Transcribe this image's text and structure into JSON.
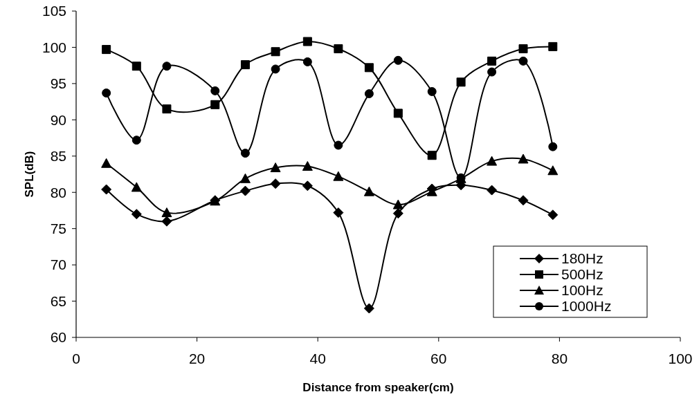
{
  "chart_data": {
    "type": "line",
    "xlabel": "Distance from speaker(cm)",
    "ylabel": "SPL(dB)",
    "x": [
      5,
      10,
      15,
      23,
      28,
      33,
      38.3,
      43.4,
      48.5,
      53.3,
      58.9,
      63.7,
      68.8,
      74,
      78.9
    ],
    "xlim": [
      0,
      100
    ],
    "xticks": [
      0,
      20,
      40,
      60,
      80,
      100
    ],
    "ylim": [
      60,
      105
    ],
    "yticks": [
      60,
      65,
      70,
      75,
      80,
      85,
      90,
      95,
      100,
      105
    ],
    "grid": false,
    "legend": "bottom right",
    "line_style": "solid",
    "series": [
      {
        "name": "180Hz",
        "color": "#000000",
        "marker": "diamond",
        "values": [
          80.4,
          77,
          76,
          78.9,
          80.2,
          81.2,
          80.9,
          77.2,
          64,
          77.1,
          80.5,
          81,
          80.3,
          78.9,
          76.9
        ]
      },
      {
        "name": "500Hz",
        "color": "#000000",
        "marker": "square",
        "values": [
          99.7,
          97.4,
          91.5,
          92.1,
          97.6,
          99.4,
          100.8,
          99.8,
          97.2,
          90.9,
          85.1,
          95.2,
          98.1,
          99.8,
          100.1
        ]
      },
      {
        "name": "100Hz",
        "color": "#000000",
        "marker": "triangle",
        "values": [
          84,
          80.7,
          77.2,
          78.8,
          81.9,
          83.4,
          83.6,
          82.2,
          80.1,
          78.3,
          80.1,
          81.9,
          84.3,
          84.6,
          83
        ]
      },
      {
        "name": "1000Hz",
        "color": "#000000",
        "marker": "circle",
        "values": [
          93.7,
          87.2,
          97.4,
          94,
          85.4,
          97,
          98,
          86.5,
          93.6,
          98.2,
          93.9,
          82,
          96.6,
          98.1,
          86.3
        ]
      }
    ]
  }
}
